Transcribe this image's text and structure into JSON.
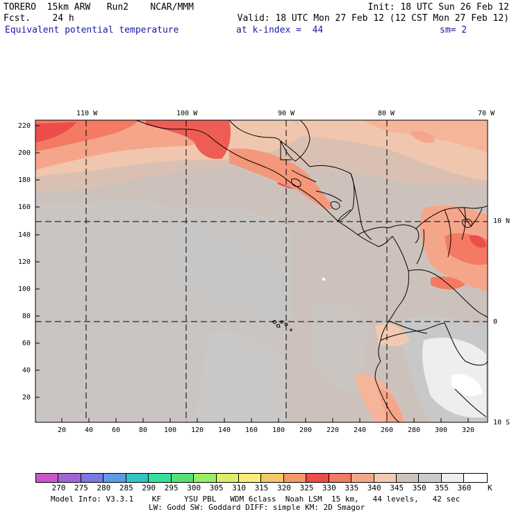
{
  "header": {
    "line1_left": "TORERO  15km ARW   Run2    NCAR/MMM",
    "line1_right": "Init: 18 UTC Sun 26 Feb 12",
    "line2_left": "Fcst.    24 h",
    "line2_right": "Valid: 18 UTC Mon 27 Feb 12 (12 CST Mon 27 Feb 12)",
    "line3_field": "Equivalent potential temperature",
    "line3_level": "at k-index =  44",
    "line3_smooth": "sm= 2"
  },
  "map": {
    "top_longitude_labels": [
      "110 W",
      "100 W",
      "90 W",
      "80 W",
      "70 W"
    ],
    "right_latitude_labels": [
      "10 N",
      "0",
      "10 S"
    ],
    "left_axis_ticks": [
      "220",
      "200",
      "180",
      "160",
      "140",
      "120",
      "100",
      "80",
      "60",
      "40",
      "20"
    ],
    "bottom_axis_ticks": [
      "20",
      "40",
      "60",
      "80",
      "100",
      "120",
      "140",
      "160",
      "180",
      "200",
      "220",
      "240",
      "260",
      "280",
      "300",
      "320"
    ],
    "dominant_range_K": "345-350",
    "colors": {
      "c330": "#ee4b4b",
      "c335": "#f47a63",
      "c340": "#f5a68a",
      "c345": "#f2c9b0",
      "c350": "#cfc3bc",
      "c355": "#cbcbcb",
      "c360": "#eeeeee",
      "ocean_main": "#c9b9b0",
      "land_line": "#000000"
    }
  },
  "colorbar": {
    "labels": [
      "270",
      "275",
      "280",
      "285",
      "290",
      "295",
      "300",
      "305",
      "310",
      "315",
      "320",
      "325",
      "330",
      "335",
      "340",
      "345",
      "350",
      "355",
      "360"
    ],
    "unit": "K",
    "colors": [
      "#cc55cc",
      "#a066d6",
      "#7a7ae6",
      "#5a9ce6",
      "#33c4c4",
      "#33e0a0",
      "#55e075",
      "#99ee66",
      "#ddee66",
      "#f6ee77",
      "#f6c766",
      "#f49966",
      "#ee4b4b",
      "#f47a63",
      "#f5a68a",
      "#f2c9b0",
      "#cfc3bc",
      "#cbcbcb",
      "#eeeeee",
      "#ffffff"
    ]
  },
  "footer": {
    "line1": "Model Info: V3.3.1    KF     YSU PBL   WDM 6class  Noah LSM  15 km,   44 levels,   42 sec",
    "line2": "LW: Godd SW: Goddard DIFF: simple KM: 2D Smagor"
  }
}
